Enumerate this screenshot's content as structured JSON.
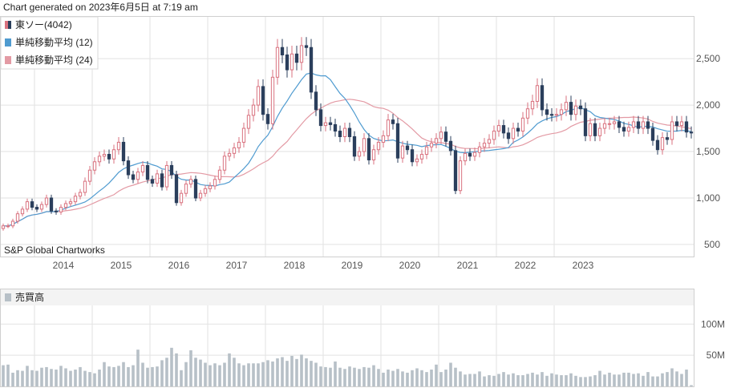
{
  "header": {
    "generated": "Chart generated on 2023年6月5日 at 7:19 am"
  },
  "watermark": "S&P Global Chartworks",
  "legend": [
    {
      "label": "東ソー(4042)",
      "color": "#d9727f",
      "icon": "candle-swatch-icon"
    },
    {
      "label": "単純移動平均 (12)",
      "color": "#4f9bd0",
      "icon": "square-swatch-icon"
    },
    {
      "label": "単純移動平均 (24)",
      "color": "#e39aa4",
      "icon": "square-swatch-icon"
    }
  ],
  "volume_legend": {
    "label": "売買高",
    "color": "#b7c0c7",
    "icon": "square-swatch-icon"
  },
  "colors": {
    "up": "#d9727f",
    "down": "#2b3f5c",
    "ma12": "#4f9bd0",
    "ma24": "#e39aa4",
    "volume": "#b7c0c7",
    "grid": "#e2e2e2",
    "border": "#cfcfcf"
  },
  "chart_data": [
    {
      "type": "candlestick",
      "title": "東ソー(4042)",
      "x_ticks": [
        "2014",
        "2015",
        "2016",
        "2017",
        "2018",
        "2019",
        "2020",
        "2021",
        "2022",
        "2023"
      ],
      "y_ticks": [
        {
          "v": 500,
          "label": "500"
        },
        {
          "v": 1000,
          "label": "1,000"
        },
        {
          "v": 1500,
          "label": "1,500"
        },
        {
          "v": 2000,
          "label": "2,000"
        },
        {
          "v": 2500,
          "label": "2,500"
        }
      ],
      "ylim": [
        370,
        2950
      ],
      "period": "monthly",
      "start": "2013-06",
      "grid": true,
      "legend_position": "top-left",
      "series": [
        {
          "name": "東ソー(4042)",
          "kind": "ohlc",
          "close_path": [
            700,
            700,
            750,
            830,
            880,
            960,
            900,
            880,
            930,
            1000,
            860,
            850,
            900,
            940,
            960,
            1020,
            1060,
            1180,
            1300,
            1390,
            1450,
            1470,
            1420,
            1520,
            1600,
            1400,
            1250,
            1200,
            1280,
            1350,
            1200,
            1160,
            1260,
            1120,
            1350,
            1250,
            950,
            1050,
            1150,
            1200,
            1000,
            1050,
            1100,
            1130,
            1200,
            1300,
            1450,
            1480,
            1540,
            1600,
            1750,
            1890,
            2000,
            2200,
            1900,
            1800,
            2300,
            2620,
            2540,
            2380,
            2550,
            2460,
            2640,
            2620,
            2140,
            1950,
            1780,
            1810,
            1790,
            1720,
            1660,
            1750,
            1660,
            1450,
            1500,
            1640,
            1410,
            1520,
            1600,
            1670,
            1840,
            1800,
            1430,
            1560,
            1520,
            1390,
            1420,
            1470,
            1550,
            1590,
            1640,
            1710,
            1610,
            1510,
            1080,
            1400,
            1480,
            1450,
            1490,
            1550,
            1590,
            1630,
            1720,
            1780,
            1700,
            1640,
            1750,
            1720,
            1860,
            1960,
            2040,
            2210,
            1950,
            1900,
            1890,
            1900,
            1950,
            2030,
            1900,
            1990,
            1960,
            1670,
            1800,
            1670,
            1750,
            1800,
            1800,
            1820,
            1760,
            1720,
            1760,
            1820,
            1750,
            1820,
            1750,
            1620,
            1520,
            1650,
            1630,
            1820,
            1780,
            1820,
            1710,
            1700
          ]
        },
        {
          "name": "単純移動平均 (12)",
          "kind": "line"
        },
        {
          "name": "単純移動平均 (24)",
          "kind": "line"
        }
      ]
    },
    {
      "type": "bar",
      "title": "売買高",
      "y_ticks": [
        {
          "v": 50,
          "label": "50M"
        },
        {
          "v": 100,
          "label": "100M"
        }
      ],
      "ylim": [
        0,
        130
      ],
      "values": [
        34,
        35,
        22,
        26,
        25,
        33,
        26,
        25,
        30,
        31,
        28,
        27,
        33,
        29,
        25,
        27,
        31,
        25,
        23,
        21,
        27,
        39,
        32,
        31,
        33,
        39,
        31,
        34,
        59,
        38,
        30,
        31,
        32,
        42,
        46,
        62,
        53,
        26,
        39,
        58,
        46,
        43,
        38,
        34,
        37,
        34,
        38,
        53,
        46,
        37,
        34,
        37,
        37,
        37,
        39,
        42,
        40,
        45,
        47,
        41,
        49,
        44,
        51,
        45,
        41,
        38,
        32,
        31,
        30,
        40,
        30,
        28,
        32,
        30,
        28,
        31,
        30,
        34,
        28,
        22,
        27,
        25,
        28,
        24,
        22,
        26,
        29,
        26,
        23,
        27,
        35,
        23,
        27,
        38,
        30,
        24,
        19,
        20,
        20,
        24,
        16,
        18,
        17,
        20,
        23,
        19,
        21,
        18,
        18,
        20,
        22,
        19,
        23,
        17,
        21,
        19,
        18,
        18,
        21,
        17,
        15,
        15,
        16,
        18,
        25,
        19,
        22,
        19,
        19,
        22,
        22,
        20,
        21,
        17,
        23,
        16,
        16,
        21,
        23,
        29,
        24,
        20,
        27,
        2
      ]
    }
  ]
}
